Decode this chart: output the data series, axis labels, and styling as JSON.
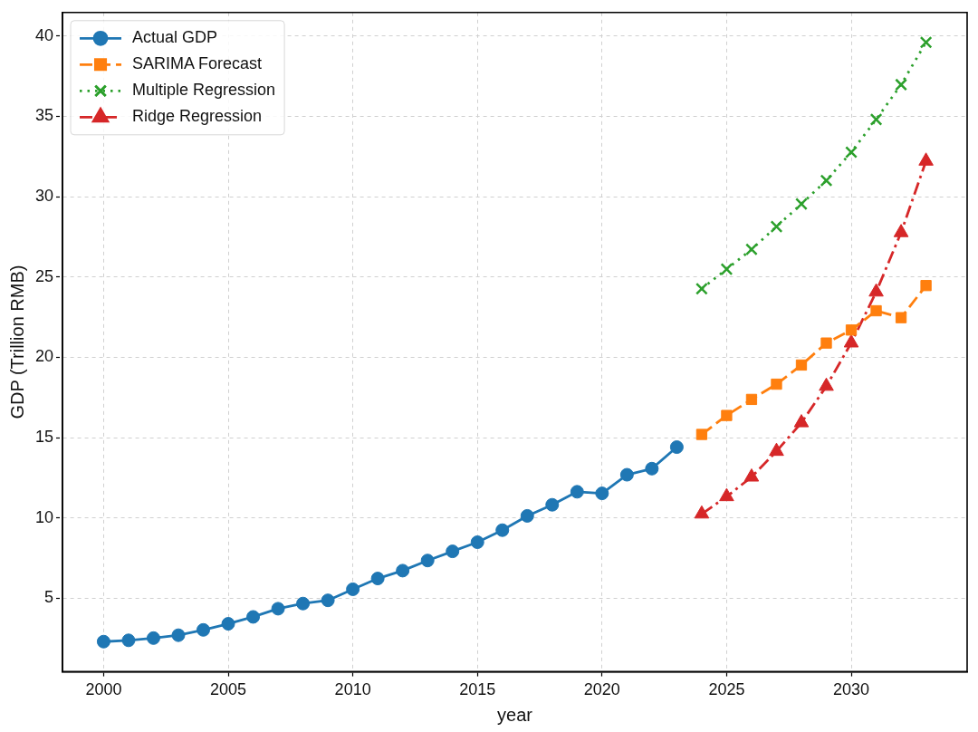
{
  "chart_data": {
    "type": "line",
    "xlabel": "year",
    "ylabel": "GDP (Trillion RMB)",
    "xlim": [
      1998.35,
      2034.65
    ],
    "xticks": [
      2000,
      2005,
      2010,
      2015,
      2020,
      2025,
      2030
    ],
    "ylim": [
      0.43,
      41.47
    ],
    "yticks": [
      5,
      10,
      15,
      20,
      25,
      30,
      35,
      40
    ],
    "grid": true,
    "legend": "top left",
    "series": [
      {
        "name": "Actual GDP",
        "color": "#1f77b4",
        "marker": "circle",
        "line_style": "solid",
        "x": [
          2000,
          2001,
          2002,
          2003,
          2004,
          2005,
          2006,
          2007,
          2008,
          2009,
          2010,
          2011,
          2012,
          2013,
          2014,
          2015,
          2016,
          2017,
          2018,
          2019,
          2020,
          2021,
          2022,
          2023
        ],
        "values": [
          2.3,
          2.38,
          2.52,
          2.7,
          3.03,
          3.41,
          3.84,
          4.35,
          4.67,
          4.87,
          5.56,
          6.23,
          6.72,
          7.35,
          7.92,
          8.49,
          9.24,
          10.13,
          10.82,
          11.63,
          11.53,
          12.69,
          13.07,
          14.41
        ]
      },
      {
        "name": "SARIMA Forecast",
        "color": "#ff7f0e",
        "marker": "square",
        "line_style": "dashed",
        "x": [
          2024,
          2025,
          2026,
          2027,
          2028,
          2029,
          2030,
          2031,
          2032,
          2033
        ],
        "values": [
          15.2,
          16.38,
          17.38,
          18.33,
          19.52,
          20.89,
          21.7,
          22.9,
          22.47,
          24.47
        ]
      },
      {
        "name": "Multiple Regression",
        "color": "#2ca02c",
        "marker": "cross",
        "line_style": "dotted",
        "x": [
          2024,
          2025,
          2026,
          2027,
          2028,
          2029,
          2030,
          2031,
          2032,
          2033
        ],
        "values": [
          24.27,
          25.49,
          26.72,
          28.14,
          29.55,
          31.01,
          32.77,
          34.81,
          36.98,
          39.61
        ]
      },
      {
        "name": "Ridge Regression",
        "color": "#d62728",
        "marker": "triangle",
        "line_style": "dashdot",
        "x": [
          2024,
          2025,
          2026,
          2027,
          2028,
          2029,
          2030,
          2031,
          2032,
          2033
        ],
        "values": [
          10.25,
          11.33,
          12.55,
          14.15,
          15.93,
          18.2,
          20.9,
          24.07,
          27.77,
          32.22
        ]
      }
    ]
  }
}
